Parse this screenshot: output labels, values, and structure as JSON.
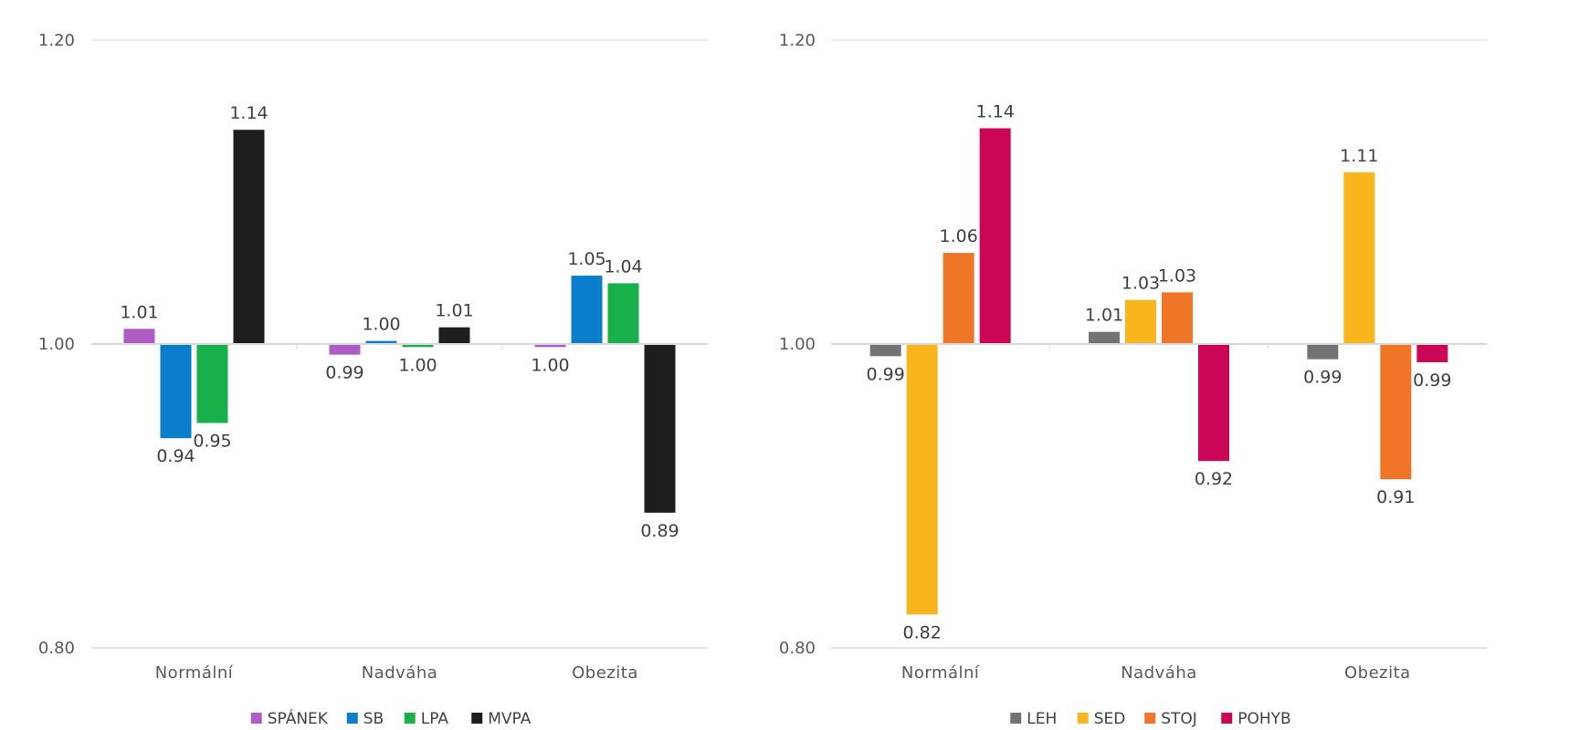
{
  "chart_data": [
    {
      "type": "bar",
      "categories": [
        "Normální",
        "Nadváha",
        "Obezita"
      ],
      "baseline": 1.0,
      "ylim": [
        0.8,
        1.2
      ],
      "yticks": [
        "1.20",
        "1.00",
        "0.80"
      ],
      "grid": false,
      "legend_position": "bottom",
      "series": [
        {
          "name": "SPÁNEK",
          "color": "#b05cc6",
          "values": [
            1.01,
            0.993,
            0.998
          ],
          "labels": [
            "1.01",
            "0.99",
            "1.00"
          ]
        },
        {
          "name": "SB",
          "color": "#0a7ecb",
          "values": [
            0.938,
            1.002,
            1.045
          ],
          "labels": [
            "0.94",
            "1.00",
            "1.05"
          ]
        },
        {
          "name": "LPA",
          "color": "#18b04b",
          "values": [
            0.948,
            0.998,
            1.04
          ],
          "labels": [
            "0.95",
            "1.00",
            "1.04"
          ]
        },
        {
          "name": "MVPA",
          "color": "#1e1e1e",
          "values": [
            1.141,
            1.011,
            0.889
          ],
          "labels": [
            "1.14",
            "1.01",
            "0.89"
          ]
        }
      ]
    },
    {
      "type": "bar",
      "categories": [
        "Normální",
        "Nadváha",
        "Obezita"
      ],
      "baseline": 1.0,
      "ylim": [
        0.8,
        1.2
      ],
      "yticks": [
        "1.20",
        "1.00",
        "0.80"
      ],
      "grid": false,
      "legend_position": "bottom",
      "series": [
        {
          "name": "LEH",
          "color": "#737373",
          "values": [
            0.992,
            1.008,
            0.99
          ],
          "labels": [
            "0.99",
            "1.01",
            "0.99"
          ]
        },
        {
          "name": "SED",
          "color": "#f9b51b",
          "values": [
            0.822,
            1.029,
            1.113
          ],
          "labels": [
            "0.82",
            "1.03",
            "1.11"
          ]
        },
        {
          "name": "STOJ",
          "color": "#f07627",
          "values": [
            1.06,
            1.034,
            0.911
          ],
          "labels": [
            "1.06",
            "1.03",
            "0.91"
          ]
        },
        {
          "name": "POHYB",
          "color": "#cc0656",
          "values": [
            1.142,
            0.923,
            0.988
          ],
          "labels": [
            "1.14",
            "0.92",
            "0.99"
          ]
        }
      ]
    }
  ]
}
